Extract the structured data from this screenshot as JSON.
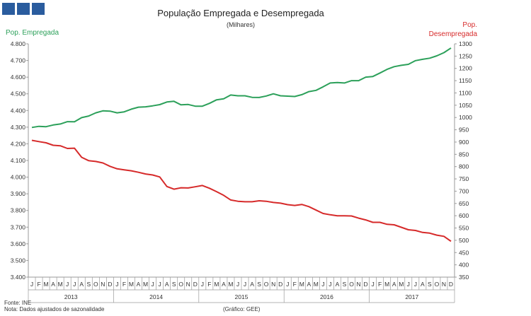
{
  "title": "População Empregada e Desempregada",
  "subtitle": "(Milhares)",
  "left_axis_label": "Pop. Empregada",
  "right_axis_label_line1": "Pop.",
  "right_axis_label_line2": "Desempregada",
  "source": "Fonte: INE",
  "note": "Nota: Dados ajustados de sazonalidade",
  "credit": "(Gráfico: GEE)",
  "colors": {
    "employed": "#2ca05a",
    "unemployed": "#d62a2a",
    "logo": "#2a5c9e",
    "axis": "#9a9a9a"
  },
  "chart_data": {
    "type": "line",
    "title": "População Empregada e Desempregada",
    "subtitle": "(Milhares)",
    "month_labels": [
      "J",
      "F",
      "M",
      "A",
      "M",
      "J",
      "J",
      "A",
      "S",
      "O",
      "N",
      "D"
    ],
    "years": [
      "2013",
      "2014",
      "2015",
      "2016",
      "2017"
    ],
    "y_left": {
      "label": "Pop. Empregada",
      "lim": [
        3400,
        4800
      ],
      "ticks": [
        3400,
        3500,
        3600,
        3700,
        3800,
        3900,
        4000,
        4100,
        4200,
        4300,
        4400,
        4500,
        4600,
        4700,
        4800
      ]
    },
    "y_right": {
      "label": "Pop. Desempregada",
      "lim": [
        350,
        1300
      ],
      "ticks": [
        350,
        400,
        450,
        500,
        550,
        600,
        650,
        700,
        750,
        800,
        850,
        900,
        950,
        1000,
        1050,
        1100,
        1150,
        1200,
        1250,
        1300
      ]
    },
    "grid": false,
    "series": [
      {
        "name": "Pop. Empregada",
        "axis": "left",
        "color": "#2ca05a",
        "values": [
          4298,
          4305,
          4303,
          4313,
          4319,
          4333,
          4332,
          4357,
          4367,
          4386,
          4398,
          4396,
          4386,
          4392,
          4408,
          4420,
          4422,
          4428,
          4435,
          4451,
          4455,
          4434,
          4436,
          4426,
          4426,
          4443,
          4464,
          4470,
          4493,
          4488,
          4488,
          4479,
          4478,
          4487,
          4500,
          4488,
          4486,
          4484,
          4495,
          4513,
          4521,
          4542,
          4565,
          4568,
          4565,
          4579,
          4579,
          4600,
          4604,
          4625,
          4647,
          4663,
          4671,
          4677,
          4699,
          4707,
          4714,
          4728,
          4747,
          4775
        ]
      },
      {
        "name": "Pop. Desempregada",
        "axis": "right",
        "color": "#d62a2a",
        "values": [
          907,
          902,
          897,
          887,
          885,
          874,
          875,
          838,
          824,
          821,
          815,
          801,
          791,
          787,
          783,
          777,
          770,
          766,
          758,
          719,
          708,
          714,
          713,
          718,
          723,
          712,
          698,
          683,
          664,
          659,
          657,
          657,
          661,
          659,
          654,
          651,
          645,
          642,
          646,
          637,
          623,
          609,
          604,
          600,
          600,
          599,
          590,
          583,
          573,
          573,
          565,
          563,
          553,
          543,
          540,
          532,
          529,
          521,
          516,
          496
        ]
      }
    ]
  }
}
